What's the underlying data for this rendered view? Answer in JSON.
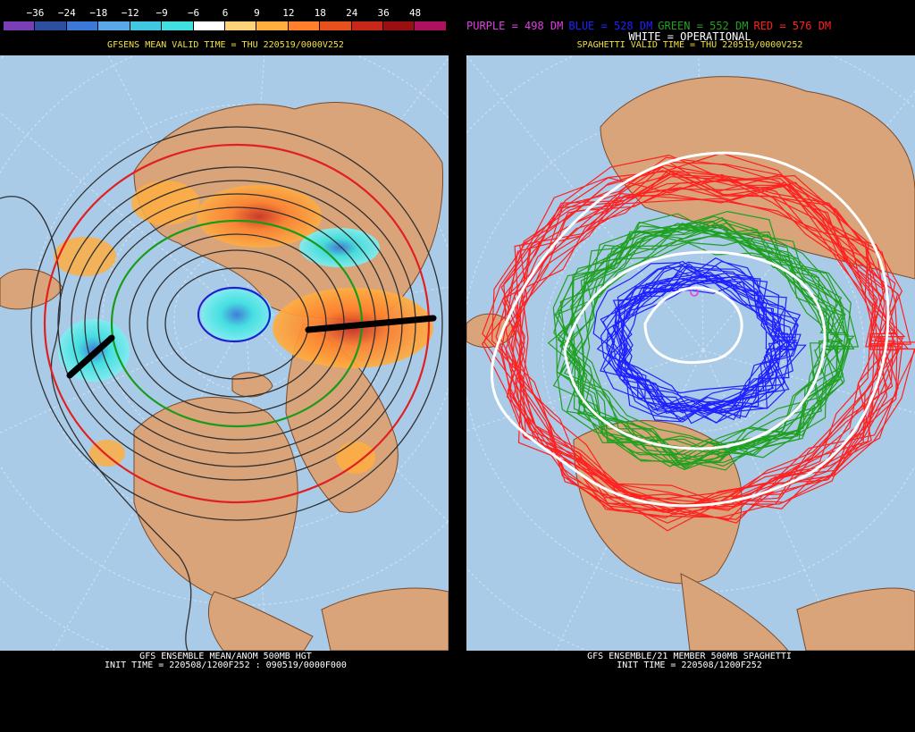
{
  "left_panel": {
    "colorbar": {
      "ticks": [
        "−36",
        "−24",
        "−18",
        "−12",
        "−9",
        "−6",
        "6",
        "9",
        "12",
        "18",
        "24",
        "36",
        "48"
      ],
      "colors": [
        "#7b3fb5",
        "#2d4fa0",
        "#3c78d8",
        "#5aa8ea",
        "#3fc8e0",
        "#40e0e0",
        "#ffffff",
        "#ffd27a",
        "#ffae40",
        "#ff7f2a",
        "#e8501e",
        "#c8281a",
        "#9a1010",
        "#b01060"
      ]
    },
    "valid_time": "GFSENS MEAN VALID TIME = THU 220519/0000V252",
    "footer_line1": "GFS ENSEMBLE MEAN/ANOM 500MB HGT",
    "footer_line2": "INIT TIME = 220508/1200F252 : 090519/0000F000"
  },
  "right_panel": {
    "legend": {
      "purple": "PURPLE = 498 DM",
      "blue": "BLUE = 528 DM",
      "green": "GREEN = 552 DM",
      "red": "RED = 576 DM",
      "white": "WHITE = OPERATIONAL"
    },
    "legend_colors": {
      "purple": "#e040e0",
      "blue": "#2020ff",
      "green": "#20a020",
      "red": "#ff2020",
      "white": "#ffffff"
    },
    "valid_time": "SPAGHETTI VALID TIME = THU 220519/0000V252",
    "footer_line1": "GFS ENSEMBLE/21 MEMBER 500MB SPAGHETTI",
    "footer_line2": "INIT TIME = 220508/1200F252"
  },
  "colors": {
    "ocean": "#a9cbe8",
    "land": "#d9a47a",
    "border": "#7a4a2a"
  }
}
